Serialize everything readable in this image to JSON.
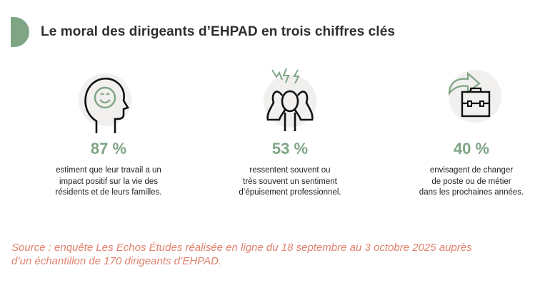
{
  "title": "Le moral des dirigeants d’EHPAD en trois chiffres clés",
  "colors": {
    "accent": "#7fa585",
    "source": "#e0826e",
    "icon_bg": "#f1f0ee"
  },
  "stats": [
    {
      "icon": "smiling-head-icon",
      "value": "87 %",
      "lines": [
        "estiment que leur travail a un",
        "impact positif sur la vie des",
        "résidents et de leurs familles."
      ]
    },
    {
      "icon": "stressed-person-icon",
      "value": "53 %",
      "lines": [
        "ressentent souvent ou",
        "très souvent un sentiment",
        "d’épuisement professionnel."
      ]
    },
    {
      "icon": "briefcase-arrow-icon",
      "value": "40 %",
      "lines": [
        "envisagent de changer",
        "de poste ou de métier",
        "dans les prochaines années."
      ]
    }
  ],
  "source": [
    "Source : enquête Les Echos Études réalisée en ligne du 18 septembre au 3 octobre 2025 auprès",
    "d’un échantillon de 170 dirigeants d’EHPAD."
  ]
}
